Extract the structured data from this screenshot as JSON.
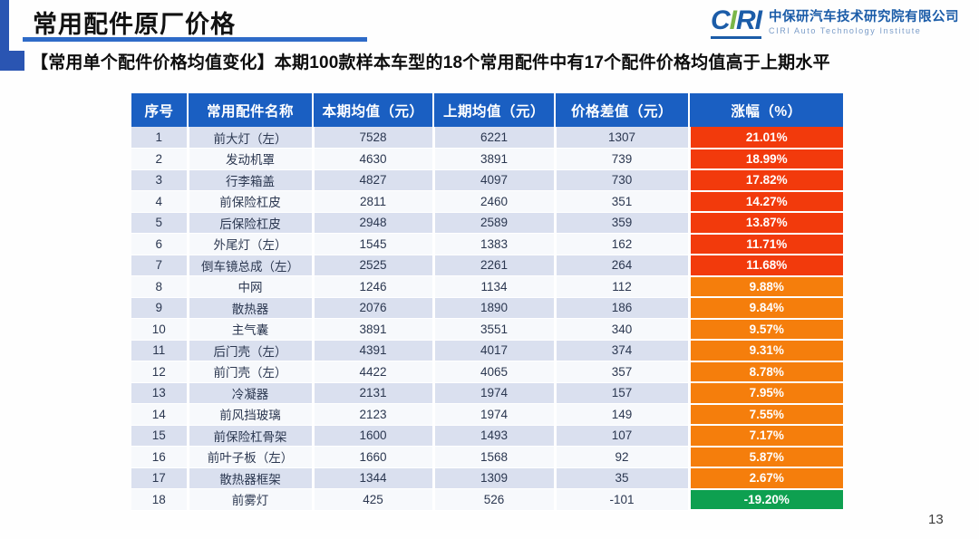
{
  "slide": {
    "title": "常用配件原厂价格",
    "subtitle": "【常用单个配件价格均值变化】本期100款样本车型的18个常用配件中有17个配件价格均值高于上期水平",
    "page_number": "13"
  },
  "logo": {
    "mark_part1": "C",
    "mark_part2": "I",
    "mark_part3": "RI",
    "company_cn": "中保研汽车技术研究院有限公司",
    "company_en": "CIRI Auto Technology Institute"
  },
  "colors": {
    "header_bg": "#1A5FC2",
    "row_shade": "#DAE0EF",
    "red": "#F23A0C",
    "orange": "#F57E0C",
    "green": "#0EA050",
    "accent_blue": "#2E6BC8",
    "brand_blue": "#1B5CA8",
    "brand_green": "#7AB648"
  },
  "table": {
    "headers": [
      "序号",
      "常用配件名称",
      "本期均值（元）",
      "上期均值（元）",
      "价格差值（元）",
      "涨幅（%）"
    ],
    "rows": [
      {
        "no": "1",
        "name": "前大灯（左）",
        "current": "7528",
        "previous": "6221",
        "diff": "1307",
        "change": "21.01%",
        "level": "red"
      },
      {
        "no": "2",
        "name": "发动机罩",
        "current": "4630",
        "previous": "3891",
        "diff": "739",
        "change": "18.99%",
        "level": "red"
      },
      {
        "no": "3",
        "name": "行李箱盖",
        "current": "4827",
        "previous": "4097",
        "diff": "730",
        "change": "17.82%",
        "level": "red"
      },
      {
        "no": "4",
        "name": "前保险杠皮",
        "current": "2811",
        "previous": "2460",
        "diff": "351",
        "change": "14.27%",
        "level": "red"
      },
      {
        "no": "5",
        "name": "后保险杠皮",
        "current": "2948",
        "previous": "2589",
        "diff": "359",
        "change": "13.87%",
        "level": "red"
      },
      {
        "no": "6",
        "name": "外尾灯（左）",
        "current": "1545",
        "previous": "1383",
        "diff": "162",
        "change": "11.71%",
        "level": "red"
      },
      {
        "no": "7",
        "name": "倒车镜总成（左）",
        "current": "2525",
        "previous": "2261",
        "diff": "264",
        "change": "11.68%",
        "level": "red"
      },
      {
        "no": "8",
        "name": "中网",
        "current": "1246",
        "previous": "1134",
        "diff": "112",
        "change": "9.88%",
        "level": "orange"
      },
      {
        "no": "9",
        "name": "散热器",
        "current": "2076",
        "previous": "1890",
        "diff": "186",
        "change": "9.84%",
        "level": "orange"
      },
      {
        "no": "10",
        "name": "主气囊",
        "current": "3891",
        "previous": "3551",
        "diff": "340",
        "change": "9.57%",
        "level": "orange"
      },
      {
        "no": "11",
        "name": "后门壳（左）",
        "current": "4391",
        "previous": "4017",
        "diff": "374",
        "change": "9.31%",
        "level": "orange"
      },
      {
        "no": "12",
        "name": "前门壳（左）",
        "current": "4422",
        "previous": "4065",
        "diff": "357",
        "change": "8.78%",
        "level": "orange"
      },
      {
        "no": "13",
        "name": "冷凝器",
        "current": "2131",
        "previous": "1974",
        "diff": "157",
        "change": "7.95%",
        "level": "orange"
      },
      {
        "no": "14",
        "name": "前风挡玻璃",
        "current": "2123",
        "previous": "1974",
        "diff": "149",
        "change": "7.55%",
        "level": "orange"
      },
      {
        "no": "15",
        "name": "前保险杠骨架",
        "current": "1600",
        "previous": "1493",
        "diff": "107",
        "change": "7.17%",
        "level": "orange"
      },
      {
        "no": "16",
        "name": "前叶子板（左）",
        "current": "1660",
        "previous": "1568",
        "diff": "92",
        "change": "5.87%",
        "level": "orange"
      },
      {
        "no": "17",
        "name": "散热器框架",
        "current": "1344",
        "previous": "1309",
        "diff": "35",
        "change": "2.67%",
        "level": "orange"
      },
      {
        "no": "18",
        "name": "前雾灯",
        "current": "425",
        "previous": "526",
        "diff": "-101",
        "change": "-19.20%",
        "level": "green"
      }
    ]
  }
}
